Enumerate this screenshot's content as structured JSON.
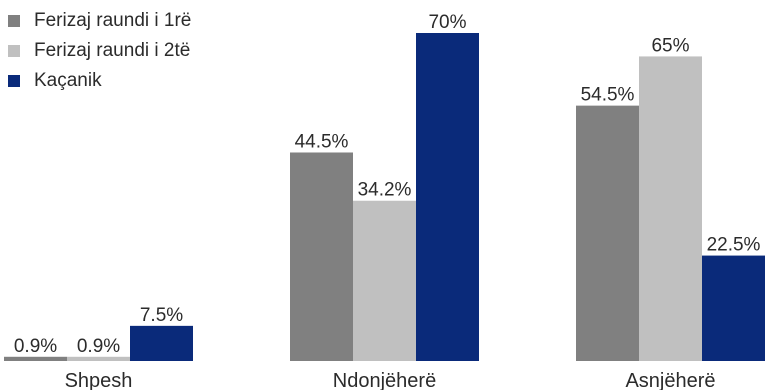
{
  "chart_data": {
    "type": "bar",
    "categories": [
      "Shpesh",
      "Ndonjëherë",
      "Asnjëherë"
    ],
    "series": [
      {
        "name": "Ferizaj raundi i 1rë",
        "values": [
          0.9,
          44.5,
          54.5
        ],
        "labels": [
          "0.9%",
          "44.5%",
          "54.5%"
        ],
        "color": "#808080"
      },
      {
        "name": "Ferizaj raundi i 2të",
        "values": [
          0.9,
          34.2,
          65
        ],
        "labels": [
          "0.9%",
          "34.2%",
          "65%"
        ],
        "color": "#c0c0c0"
      },
      {
        "name": "Kaçanik",
        "values": [
          7.5,
          70,
          22.5
        ],
        "labels": [
          "7.5%",
          "70%",
          "22.5%"
        ],
        "color": "#0a2a7a"
      }
    ],
    "ylim": [
      0,
      70
    ],
    "grid": false,
    "legend_position": "top-left"
  }
}
